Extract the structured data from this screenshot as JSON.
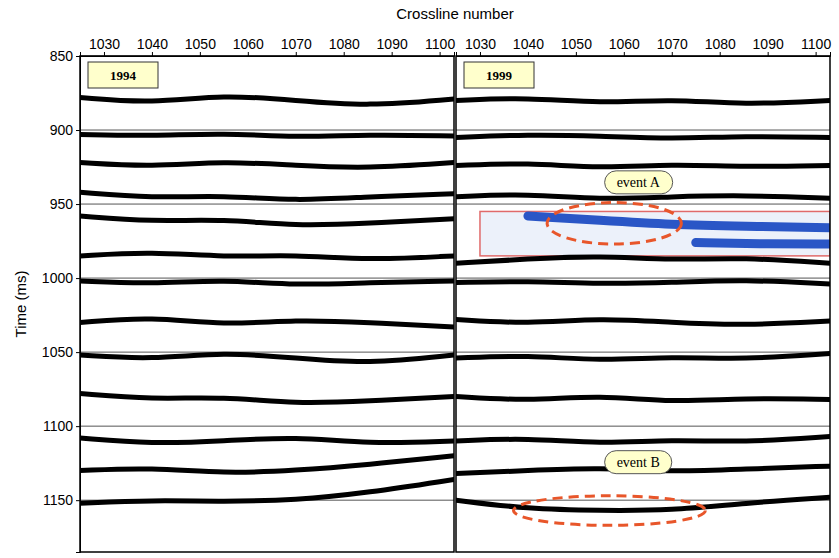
{
  "chart_data": {
    "type": "seismic_section",
    "xlabel": "Crossline number",
    "ylabel": "Time (ms)",
    "xlim": [
      1025,
      1103
    ],
    "xticks": [
      1030,
      1040,
      1050,
      1060,
      1070,
      1080,
      1090,
      1100
    ],
    "ylim": [
      850,
      1185
    ],
    "yticks": [
      850,
      900,
      950,
      1000,
      1050,
      1100,
      1150
    ],
    "grid": true,
    "panels": [
      {
        "title": "1994",
        "series": [
          {
            "x": [
              1025,
              1040,
              1055,
              1070,
              1085,
              1103
            ],
            "values": [
              878,
              882,
              876,
              880,
              884,
              879
            ],
            "color": "#000000"
          },
          {
            "x": [
              1025,
              1040,
              1055,
              1070,
              1085,
              1103
            ],
            "values": [
              903,
              904,
              902,
              905,
              903,
              904
            ],
            "color": "#000000"
          },
          {
            "x": [
              1025,
              1040,
              1055,
              1070,
              1085,
              1103
            ],
            "values": [
              922,
              925,
              921,
              924,
              926,
              922
            ],
            "color": "#000000"
          },
          {
            "x": [
              1025,
              1040,
              1055,
              1070,
              1085,
              1103
            ],
            "values": [
              942,
              946,
              944,
              948,
              945,
              943
            ],
            "color": "#000000"
          },
          {
            "x": [
              1025,
              1040,
              1055,
              1070,
              1085,
              1103
            ],
            "values": [
              958,
              962,
              960,
              965,
              963,
              960
            ],
            "color": "#000000"
          },
          {
            "x": [
              1025,
              1040,
              1055,
              1070,
              1085,
              1103
            ],
            "values": [
              985,
              982,
              986,
              984,
              988,
              985
            ],
            "color": "#000000"
          },
          {
            "x": [
              1025,
              1040,
              1055,
              1070,
              1085,
              1103
            ],
            "values": [
              1002,
              1004,
              1001,
              1005,
              1003,
              1002
            ],
            "color": "#000000"
          },
          {
            "x": [
              1025,
              1040,
              1055,
              1070,
              1085,
              1103
            ],
            "values": [
              1030,
              1026,
              1032,
              1028,
              1030,
              1033
            ],
            "color": "#000000"
          },
          {
            "x": [
              1025,
              1040,
              1055,
              1070,
              1085,
              1103
            ],
            "values": [
              1052,
              1055,
              1050,
              1054,
              1058,
              1052
            ],
            "color": "#000000"
          },
          {
            "x": [
              1025,
              1040,
              1055,
              1070,
              1085,
              1103
            ],
            "values": [
              1078,
              1082,
              1080,
              1085,
              1083,
              1080
            ],
            "color": "#000000"
          },
          {
            "x": [
              1025,
              1040,
              1055,
              1070,
              1085,
              1103
            ],
            "values": [
              1108,
              1112,
              1110,
              1107,
              1112,
              1110
            ],
            "color": "#000000"
          },
          {
            "x": [
              1025,
              1040,
              1055,
              1070,
              1085,
              1103
            ],
            "values": [
              1130,
              1128,
              1132,
              1130,
              1126,
              1120
            ],
            "color": "#000000"
          },
          {
            "x": [
              1025,
              1040,
              1055,
              1070,
              1085,
              1103
            ],
            "values": [
              1152,
              1150,
              1151,
              1150,
              1145,
              1136
            ],
            "color": "#000000"
          }
        ]
      },
      {
        "title": "1999",
        "highlight": {
          "x": [
            1030,
            1103
          ],
          "y": [
            955,
            985
          ]
        },
        "series": [
          {
            "x": [
              1025,
              1040,
              1055,
              1070,
              1085,
              1103
            ],
            "values": [
              880,
              878,
              882,
              879,
              883,
              880
            ],
            "color": "#000000"
          },
          {
            "x": [
              1025,
              1040,
              1055,
              1070,
              1085,
              1103
            ],
            "values": [
              905,
              903,
              904,
              906,
              904,
              905
            ],
            "color": "#000000"
          },
          {
            "x": [
              1025,
              1040,
              1055,
              1070,
              1085,
              1103
            ],
            "values": [
              924,
              922,
              926,
              923,
              925,
              924
            ],
            "color": "#000000"
          },
          {
            "x": [
              1025,
              1040,
              1055,
              1070,
              1085,
              1103
            ],
            "values": [
              945,
              943,
              947,
              945,
              944,
              946
            ],
            "color": "#000000"
          },
          {
            "x": [
              1040,
              1055,
              1070,
              1085,
              1103
            ],
            "values": [
              958,
              961,
              964,
              965,
              966
            ],
            "color": "#2a56c6"
          },
          {
            "x": [
              1075,
              1088,
              1103
            ],
            "values": [
              976,
              977,
              977
            ],
            "color": "#2a56c6"
          },
          {
            "x": [
              1025,
              1040,
              1055,
              1070,
              1085,
              1103
            ],
            "values": [
              990,
              987,
              985,
              988,
              986,
              990
            ],
            "color": "#000000"
          },
          {
            "x": [
              1025,
              1040,
              1055,
              1070,
              1085,
              1103
            ],
            "values": [
              1003,
              1002,
              1004,
              1003,
              1001,
              1004
            ],
            "color": "#000000"
          },
          {
            "x": [
              1025,
              1040,
              1055,
              1070,
              1085,
              1103
            ],
            "values": [
              1028,
              1031,
              1027,
              1030,
              1032,
              1029
            ],
            "color": "#000000"
          },
          {
            "x": [
              1025,
              1040,
              1055,
              1070,
              1085,
              1103
            ],
            "values": [
              1054,
              1052,
              1056,
              1053,
              1055,
              1051
            ],
            "color": "#000000"
          },
          {
            "x": [
              1025,
              1040,
              1055,
              1070,
              1085,
              1103
            ],
            "values": [
              1080,
              1083,
              1079,
              1084,
              1081,
              1082
            ],
            "color": "#000000"
          },
          {
            "x": [
              1025,
              1040,
              1055,
              1070,
              1085,
              1103
            ],
            "values": [
              1110,
              1108,
              1112,
              1109,
              1111,
              1107
            ],
            "color": "#000000"
          },
          {
            "x": [
              1025,
              1040,
              1055,
              1070,
              1085,
              1103
            ],
            "values": [
              1132,
              1130,
              1128,
              1131,
              1129,
              1127
            ],
            "color": "#000000"
          },
          {
            "x": [
              1025,
              1040,
              1055,
              1070,
              1085,
              1103
            ],
            "values": [
              1150,
              1156,
              1157,
              1157,
              1152,
              1148
            ],
            "color": "#000000"
          }
        ],
        "ellipses": [
          {
            "cx": 1058,
            "cy": 963,
            "rx": 14,
            "ry": 14
          },
          {
            "cx": 1057,
            "cy": 1157,
            "rx": 20,
            "ry": 10
          }
        ],
        "annotations": [
          {
            "text": "event A",
            "x": 1063,
            "y": 935
          },
          {
            "text": "event B",
            "x": 1063,
            "y": 1124
          }
        ]
      }
    ]
  }
}
